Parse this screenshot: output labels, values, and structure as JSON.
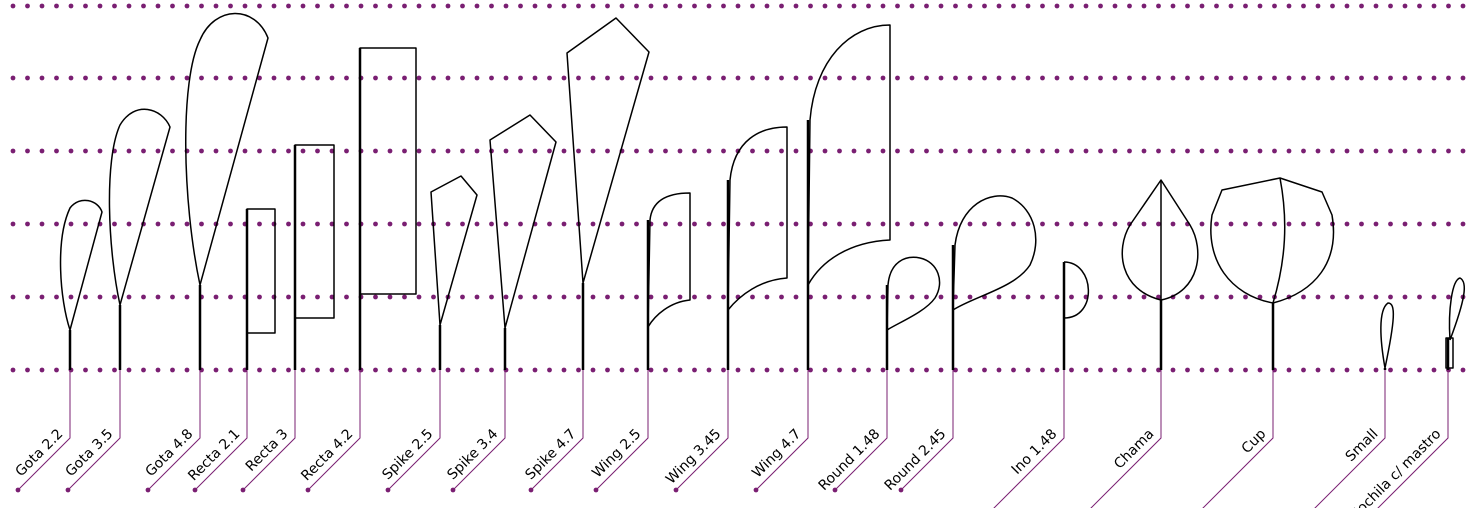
{
  "labels": [
    "Gota 2.2",
    "Gota 3.5",
    "Gota 4.8",
    "Recta 2.1",
    "Recta 3",
    "Recta 4.2",
    "Spike 2.5",
    "Spike 3.4",
    "Spike 4.7",
    "Wing 2.5",
    "Wing 3.45",
    "Wing 4.7",
    "Round 1.48",
    "Round 2.45",
    "Ino 1.48",
    "Chama",
    "Cup",
    "Small",
    "Mochila c/ mastro"
  ]
}
